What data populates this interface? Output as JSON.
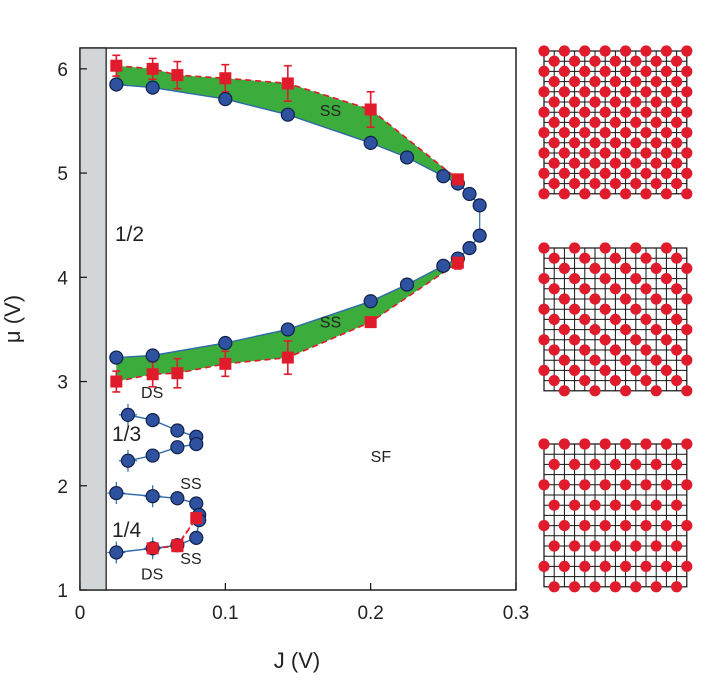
{
  "chart_data": {
    "type": "scatter",
    "title": "",
    "xlabel": "J (V)",
    "ylabel": "μ (V)",
    "xlim": [
      0,
      0.3
    ],
    "ylim": [
      1,
      6.2
    ],
    "x_ticks": [
      "0",
      "0.1",
      "0.2",
      "0.3"
    ],
    "y_ticks": [
      "1",
      "2",
      "3",
      "4",
      "5",
      "6"
    ],
    "shaded_region": {
      "x_range": [
        0,
        0.018
      ],
      "color": "#d3d6d9"
    },
    "colors": {
      "circle_fill": "#2f52a0",
      "circle_stroke": "#10204a",
      "square": "#e01b2c",
      "band": "#3cad3c",
      "blue_line": "#2f6aa8",
      "red_dash": "#e01b2c"
    },
    "series": [
      {
        "name": "upper boundary (circles)",
        "marker": "circle",
        "line": "solid",
        "x": [
          0.025,
          0.05,
          0.1,
          0.143,
          0.2,
          0.225,
          0.25,
          0.26,
          0.268,
          0.275
        ],
        "y": [
          5.85,
          5.82,
          5.71,
          5.56,
          5.29,
          5.15,
          4.97,
          4.9,
          4.8,
          4.69
        ]
      },
      {
        "name": "upper boundary (squares)",
        "marker": "square",
        "line": "dashed",
        "x": [
          0.025,
          0.05,
          0.067,
          0.1,
          0.143,
          0.2,
          0.26
        ],
        "y": [
          6.03,
          6.0,
          5.94,
          5.91,
          5.86,
          5.61,
          4.94
        ],
        "yerr": [
          0.1,
          0.1,
          0.13,
          0.13,
          0.17,
          0.17,
          0.04
        ]
      },
      {
        "name": "lower boundary (circles)",
        "marker": "circle",
        "line": "solid",
        "x": [
          0.025,
          0.05,
          0.1,
          0.143,
          0.2,
          0.225,
          0.25,
          0.26,
          0.268,
          0.275
        ],
        "y": [
          3.23,
          3.25,
          3.37,
          3.5,
          3.77,
          3.93,
          4.11,
          4.18,
          4.28,
          4.4
        ]
      },
      {
        "name": "lower boundary (squares)",
        "marker": "square",
        "line": "dashed",
        "x": [
          0.025,
          0.05,
          0.067,
          0.1,
          0.143,
          0.2,
          0.26
        ],
        "y": [
          3.0,
          3.07,
          3.08,
          3.17,
          3.23,
          3.57,
          4.14
        ],
        "yerr": [
          0.1,
          0.12,
          0.14,
          0.12,
          0.16,
          0.04,
          0.06
        ]
      },
      {
        "name": "1/3 lobe (circles)",
        "marker": "circle",
        "line": "solid",
        "x": [
          0.033,
          0.05,
          0.067,
          0.08,
          0.08,
          0.067,
          0.05,
          0.033
        ],
        "y": [
          2.68,
          2.63,
          2.53,
          2.47,
          2.4,
          2.37,
          2.29,
          2.24
        ]
      },
      {
        "name": "1/4 lobe (circles)",
        "marker": "circle",
        "line": "solid",
        "x": [
          0.025,
          0.05,
          0.067,
          0.08,
          0.082,
          0.082,
          0.08,
          0.067,
          0.05,
          0.025
        ],
        "y": [
          1.93,
          1.9,
          1.88,
          1.83,
          1.72,
          1.67,
          1.5,
          1.43,
          1.4,
          1.36
        ]
      },
      {
        "name": "1/4 lobe (squares)",
        "marker": "square",
        "line": "dashed",
        "x": [
          0.05,
          0.067,
          0.08,
          0.067
        ],
        "y": [
          1.4,
          1.42,
          1.69,
          1.43
        ],
        "yerr": [
          0.0,
          0.0,
          0.0,
          0.0
        ]
      }
    ],
    "annotations": [
      {
        "text": "SS",
        "x": 0.165,
        "y": 5.55
      },
      {
        "text": "SS",
        "x": 0.165,
        "y": 3.52
      },
      {
        "text": "1/2",
        "x": 0.024,
        "y": 4.35
      },
      {
        "text": "DS",
        "x": 0.042,
        "y": 2.84
      },
      {
        "text": "1/3",
        "x": 0.022,
        "y": 2.43
      },
      {
        "text": "SF",
        "x": 0.2,
        "y": 2.23
      },
      {
        "text": "SS",
        "x": 0.069,
        "y": 1.97
      },
      {
        "text": "1/4",
        "x": 0.022,
        "y": 1.51
      },
      {
        "text": "SS",
        "x": 0.069,
        "y": 1.25
      },
      {
        "text": "DS",
        "x": 0.042,
        "y": 1.1
      }
    ],
    "insets": [
      {
        "name": "checkerboard",
        "pattern": "checkerboard",
        "grid": 14
      },
      {
        "name": "diagonal stripe",
        "pattern": "diagonal",
        "grid": 14
      },
      {
        "name": "quarter filling",
        "pattern": "quarter",
        "grid": 14
      }
    ]
  }
}
